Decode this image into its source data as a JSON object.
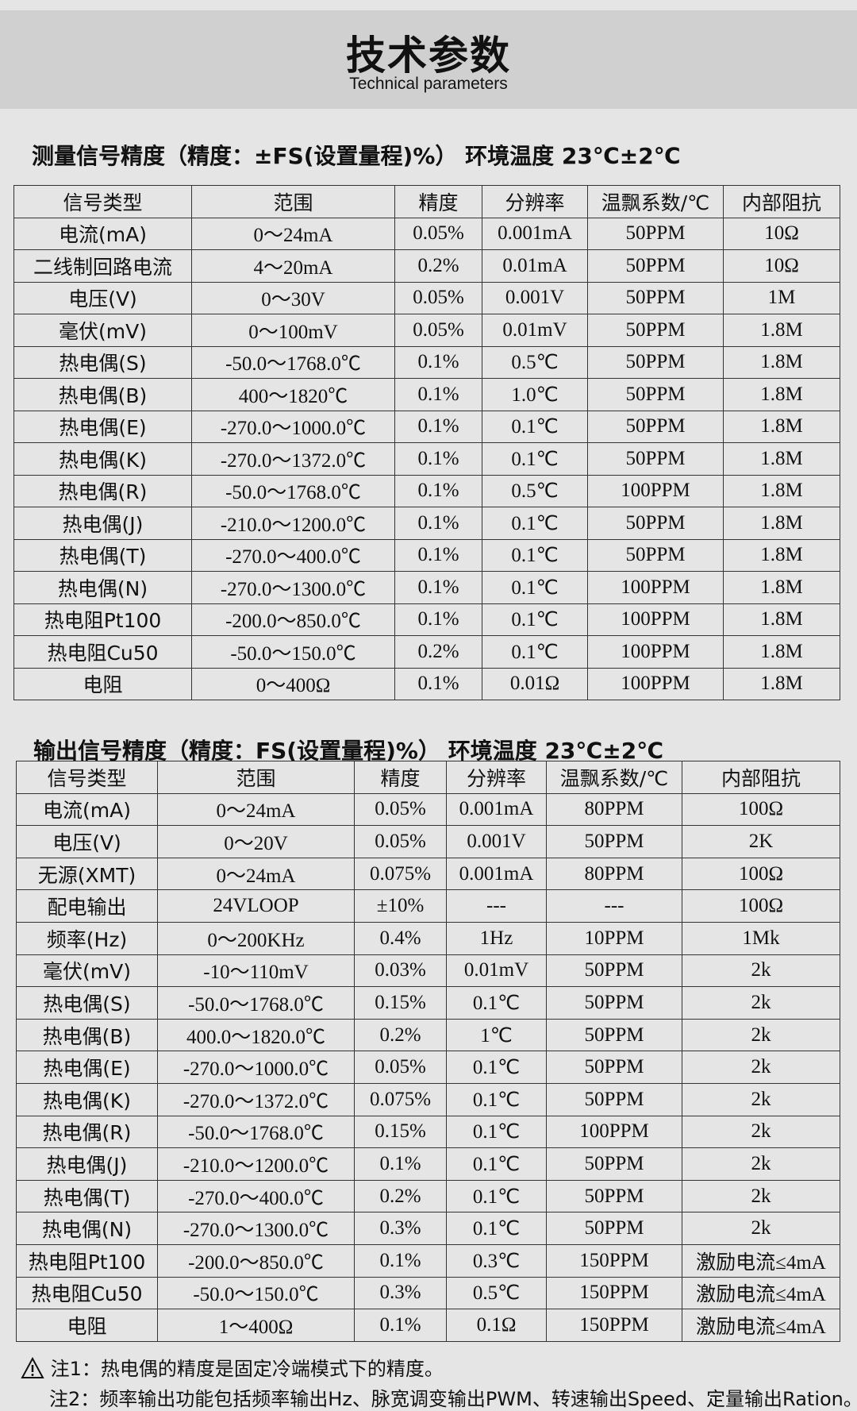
{
  "header": {
    "title": "技术参数",
    "subtitle": "Technical parameters"
  },
  "measure": {
    "title": "测量信号精度（精度：±FS(设置量程)%） 环境温度 23℃±2℃",
    "headers": [
      "信号类型",
      "范围",
      "精度",
      "分辨率",
      "温飘系数/℃",
      "内部阻抗"
    ],
    "rows": [
      [
        "电流(mA)",
        "0～24mA",
        "0.05%",
        "0.001mA",
        "50PPM",
        "10Ω"
      ],
      [
        "二线制回路电流",
        "4～20mA",
        "0.2%",
        "0.01mA",
        "50PPM",
        "10Ω"
      ],
      [
        "电压(V)",
        "0～30V",
        "0.05%",
        "0.001V",
        "50PPM",
        "1M"
      ],
      [
        "毫伏(mV)",
        "0～100mV",
        "0.05%",
        "0.01mV",
        "50PPM",
        "1.8M"
      ],
      [
        "热电偶(S)",
        "-50.0～1768.0℃",
        "0.1%",
        "0.5℃",
        "50PPM",
        "1.8M"
      ],
      [
        "热电偶(B)",
        "400～1820℃",
        "0.1%",
        "1.0℃",
        "50PPM",
        "1.8M"
      ],
      [
        "热电偶(E)",
        "-270.0～1000.0℃",
        "0.1%",
        "0.1℃",
        "50PPM",
        "1.8M"
      ],
      [
        "热电偶(K)",
        "-270.0～1372.0℃",
        "0.1%",
        "0.1℃",
        "50PPM",
        "1.8M"
      ],
      [
        "热电偶(R)",
        "-50.0～1768.0℃",
        "0.1%",
        "0.5℃",
        "100PPM",
        "1.8M"
      ],
      [
        "热电偶(J)",
        "-210.0～1200.0℃",
        "0.1%",
        "0.1℃",
        "50PPM",
        "1.8M"
      ],
      [
        "热电偶(T)",
        "-270.0～400.0℃",
        "0.1%",
        "0.1℃",
        "50PPM",
        "1.8M"
      ],
      [
        "热电偶(N)",
        "-270.0～1300.0℃",
        "0.1%",
        "0.1℃",
        "100PPM",
        "1.8M"
      ],
      [
        "热电阻Pt100",
        "-200.0～850.0℃",
        "0.1%",
        "0.1℃",
        "100PPM",
        "1.8M"
      ],
      [
        "热电阻Cu50",
        "-50.0～150.0℃",
        "0.2%",
        "0.1℃",
        "100PPM",
        "1.8M"
      ],
      [
        "电阻",
        "0～400Ω",
        "0.1%",
        "0.01Ω",
        "100PPM",
        "1.8M"
      ]
    ]
  },
  "output": {
    "title": "输出信号精度（精度：FS(设置量程)%） 环境温度 23℃±2℃",
    "headers": [
      "信号类型",
      "范围",
      "精度",
      "分辨率",
      "温飘系数/℃",
      "内部阻抗"
    ],
    "rows": [
      [
        "电流(mA)",
        "0～24mA",
        "0.05%",
        "0.001mA",
        "80PPM",
        "100Ω"
      ],
      [
        "电压(V)",
        "0～20V",
        "0.05%",
        "0.001V",
        "50PPM",
        "2K"
      ],
      [
        "无源(XMT)",
        "0～24mA",
        "0.075%",
        "0.001mA",
        "80PPM",
        "100Ω"
      ],
      [
        "配电输出",
        "24VLOOP",
        "±10%",
        "---",
        "---",
        "100Ω"
      ],
      [
        "频率(Hz)",
        "0～200KHz",
        "0.4%",
        "1Hz",
        "10PPM",
        "1Mk"
      ],
      [
        "毫伏(mV)",
        "-10～110mV",
        "0.03%",
        "0.01mV",
        "50PPM",
        "2k"
      ],
      [
        "热电偶(S)",
        "-50.0～1768.0℃",
        "0.15%",
        "0.1℃",
        "50PPM",
        "2k"
      ],
      [
        "热电偶(B)",
        "400.0～1820.0℃",
        "0.2%",
        "1℃",
        "50PPM",
        "2k"
      ],
      [
        "热电偶(E)",
        "-270.0～1000.0℃",
        "0.05%",
        "0.1℃",
        "50PPM",
        "2k"
      ],
      [
        "热电偶(K)",
        "-270.0～1372.0℃",
        "0.075%",
        "0.1℃",
        "50PPM",
        "2k"
      ],
      [
        "热电偶(R)",
        "-50.0～1768.0℃",
        "0.15%",
        "0.1℃",
        "100PPM",
        "2k"
      ],
      [
        "热电偶(J)",
        "-210.0～1200.0℃",
        "0.1%",
        "0.1℃",
        "50PPM",
        "2k"
      ],
      [
        "热电偶(T)",
        "-270.0～400.0℃",
        "0.2%",
        "0.1℃",
        "50PPM",
        "2k"
      ],
      [
        "热电偶(N)",
        "-270.0～1300.0℃",
        "0.3%",
        "0.1℃",
        "50PPM",
        "2k"
      ],
      [
        "热电阻Pt100",
        "-200.0～850.0℃",
        "0.1%",
        "0.3℃",
        "150PPM",
        "激励电流≤4mA"
      ],
      [
        "热电阻Cu50",
        "-50.0～150.0℃",
        "0.3%",
        "0.5℃",
        "150PPM",
        "激励电流≤4mA"
      ],
      [
        "电阻",
        "1～400Ω",
        "0.1%",
        "0.1Ω",
        "150PPM",
        "激励电流≤4mA"
      ]
    ]
  },
  "notes": {
    "icon": "warning-triangle-icon",
    "note1": "注1：热电偶的精度是固定冷端模式下的精度。",
    "note2": "注2：频率输出功能包括频率输出Hz、脉宽调变输出PWM、转速输出Speed、定量输出Ration。"
  }
}
